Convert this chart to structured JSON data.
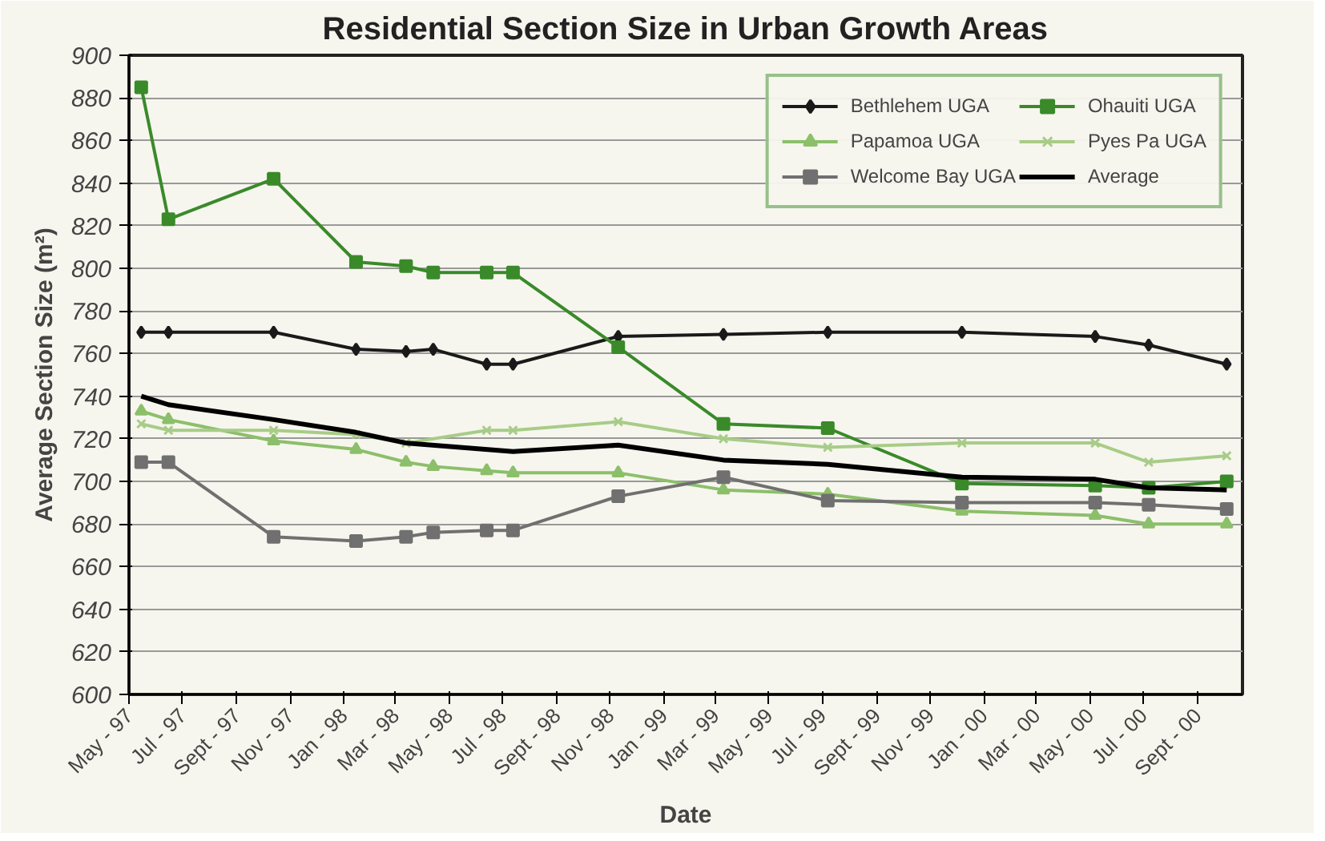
{
  "chart_data": {
    "type": "line",
    "title": "Residential Section Size in Urban Growth Areas",
    "xlabel": "Date",
    "ylabel": "Average Section Size (m²)",
    "x": [
      "1997-05-15",
      "1997-06-15",
      "1997-10-13",
      "1998-01-15",
      "1998-03-13",
      "1998-04-13",
      "1998-06-13",
      "1998-07-13",
      "1998-11-10",
      "1999-03-10",
      "1999-07-07",
      "1999-12-07",
      "2000-05-07",
      "2000-07-07",
      "2000-10-04"
    ],
    "xlim": [
      "1997-05-01",
      "2000-10-22"
    ],
    "xticks": [
      {
        "value": "1997-05-01",
        "label": "May - 97"
      },
      {
        "value": "1997-07-01",
        "label": "Jul - 97"
      },
      {
        "value": "1997-09-01",
        "label": "Sept - 97"
      },
      {
        "value": "1997-11-01",
        "label": "Nov - 97"
      },
      {
        "value": "1998-01-01",
        "label": "Jan - 98"
      },
      {
        "value": "1998-03-01",
        "label": "Mar - 98"
      },
      {
        "value": "1998-05-01",
        "label": "May - 98"
      },
      {
        "value": "1998-07-01",
        "label": "Jul - 98"
      },
      {
        "value": "1998-09-01",
        "label": "Sept - 98"
      },
      {
        "value": "1998-11-01",
        "label": "Nov - 98"
      },
      {
        "value": "1999-01-01",
        "label": "Jan - 99"
      },
      {
        "value": "1999-03-01",
        "label": "Mar - 99"
      },
      {
        "value": "1999-05-01",
        "label": "May - 99"
      },
      {
        "value": "1999-07-01",
        "label": "Jul - 99"
      },
      {
        "value": "1999-09-01",
        "label": "Sept - 99"
      },
      {
        "value": "1999-11-01",
        "label": "Nov - 99"
      },
      {
        "value": "2000-01-01",
        "label": "Jan - 00"
      },
      {
        "value": "2000-03-01",
        "label": "Mar - 00"
      },
      {
        "value": "2000-05-01",
        "label": "May - 00"
      },
      {
        "value": "2000-07-01",
        "label": "Jul - 00"
      },
      {
        "value": "2000-09-01",
        "label": "Sept - 00"
      }
    ],
    "ylim": [
      600,
      900
    ],
    "yticks": [
      600,
      620,
      640,
      660,
      680,
      700,
      720,
      740,
      760,
      780,
      800,
      820,
      840,
      860,
      880,
      900
    ],
    "grid": "y",
    "legend": "top right",
    "line_style": "solid",
    "series": [
      {
        "name": "Bethlehem UGA",
        "color": "#1a1a1a",
        "marker": "diamond",
        "values": [
          770,
          770,
          770,
          762,
          761,
          762,
          755,
          755,
          768,
          769,
          770,
          770,
          768,
          764,
          755
        ]
      },
      {
        "name": "Papamoa UGA",
        "color": "#8cbf6a",
        "marker": "triangle",
        "values": [
          733,
          729,
          719,
          715,
          709,
          707,
          705,
          704,
          704,
          696,
          694,
          686,
          684,
          680,
          680
        ]
      },
      {
        "name": "Welcome Bay UGA",
        "color": "#707070",
        "marker": "square",
        "values": [
          709,
          709,
          674,
          672,
          674,
          676,
          677,
          677,
          693,
          702,
          691,
          690,
          690,
          689,
          687
        ]
      },
      {
        "name": "Ohauiti UGA",
        "color": "#3a8a2a",
        "marker": "square",
        "values": [
          885,
          823,
          842,
          803,
          801,
          798,
          798,
          798,
          763,
          727,
          725,
          699,
          698,
          697,
          700
        ]
      },
      {
        "name": "Pyes Pa UGA",
        "color": "#a8cc88",
        "marker": "cross",
        "x": [
          "1997-05-15",
          "1997-06-15",
          "1997-10-13",
          "1998-01-15",
          "1998-03-13",
          "1998-06-13",
          "1998-07-13",
          "1998-11-10",
          "1999-03-10",
          "1999-07-07",
          "1999-12-07",
          "2000-05-07",
          "2000-07-07",
          "2000-10-04"
        ],
        "values": [
          727,
          724,
          724,
          722,
          718,
          724,
          724,
          728,
          720,
          716,
          718,
          718,
          709,
          712
        ]
      },
      {
        "name": "Average",
        "color": "#000000",
        "marker": "none",
        "x": [
          "1997-05-15",
          "1997-06-15",
          "1997-10-13",
          "1998-01-15",
          "1998-03-13",
          "1998-07-13",
          "1998-11-10",
          "1999-03-10",
          "1999-07-07",
          "1999-12-07",
          "2000-05-07",
          "2000-07-07",
          "2000-10-04"
        ],
        "values": [
          740,
          736,
          729,
          723,
          718,
          714,
          717,
          710,
          708,
          702,
          701,
          697,
          696
        ]
      }
    ]
  }
}
